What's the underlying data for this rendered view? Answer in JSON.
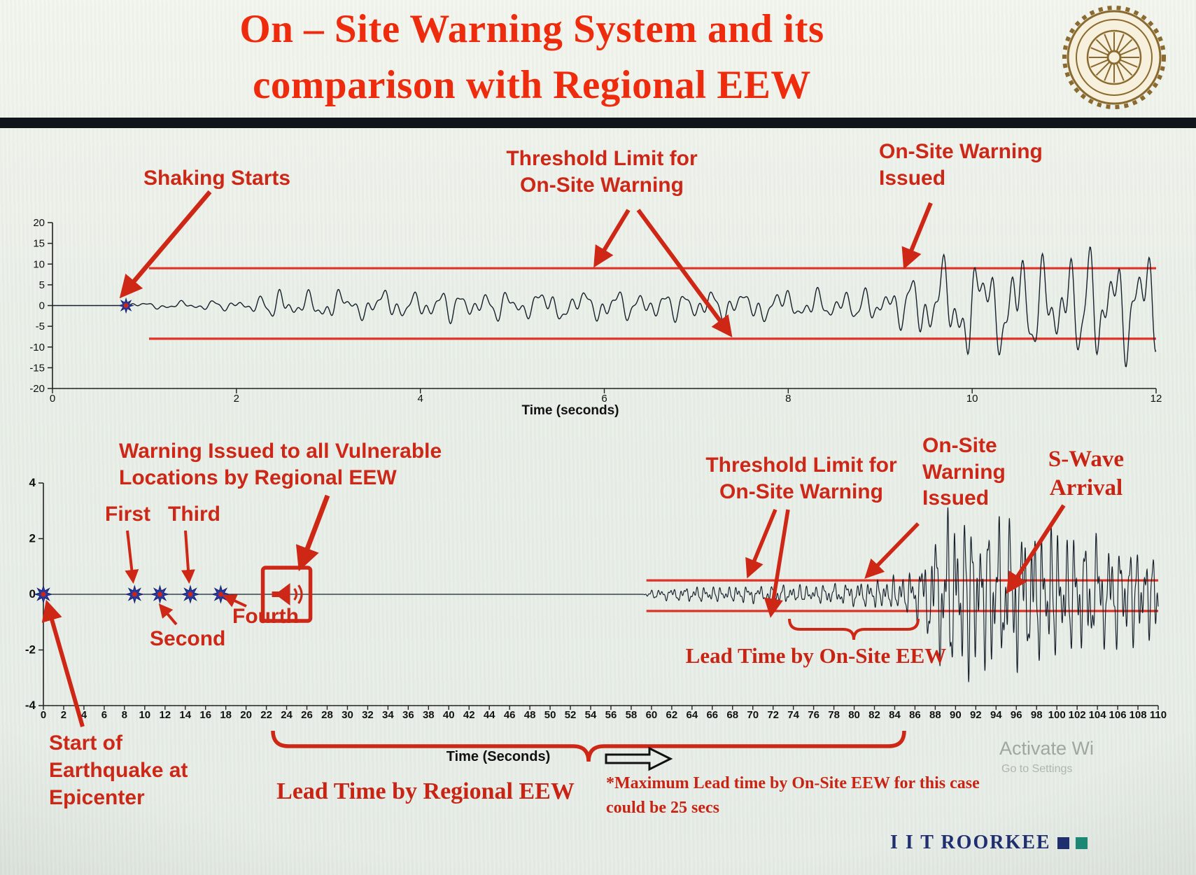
{
  "slide": {
    "title": "On – Site Warning System and its\ncomparison with Regional EEW"
  },
  "colors": {
    "title_red": "#ee2b0d",
    "annotation_red": "#cd2817",
    "threshold_red": "#e03226",
    "arrow_red": "#ce2715",
    "waveform_dark": "#16202c",
    "brand_navy": "#1f2f70",
    "brand_teal": "#1d8a78",
    "logo_brown": "#8a6a2e"
  },
  "chart_data": [
    {
      "id": "top_chart",
      "type": "line",
      "xlabel": "Time (seconds)",
      "xlim": [
        0,
        12
      ],
      "ylim": [
        -20,
        20
      ],
      "xticks": [
        0,
        2,
        4,
        6,
        8,
        10,
        12
      ],
      "yticks": [
        20,
        15,
        10,
        5,
        0,
        -5,
        -10,
        -15,
        -20
      ],
      "grid": false,
      "legend": "none",
      "thresholds": {
        "upper": 9,
        "lower": -8,
        "x_start": 1.05
      },
      "events": {
        "shaking_starts_t": 0.8,
        "onsite_warning_issued_t": 9.3
      },
      "annotations": {
        "shaking_starts": "Shaking Starts",
        "threshold_limit": "Threshold Limit for\nOn-Site Warning",
        "warning_issued": "On-Site Warning\nIssued"
      },
      "envelope": [
        [
          0,
          0
        ],
        [
          0.78,
          0
        ],
        [
          0.85,
          0.7
        ],
        [
          1.1,
          0.9
        ],
        [
          1.4,
          1.1
        ],
        [
          1.8,
          1.3
        ],
        [
          2.1,
          1.8
        ],
        [
          2.35,
          2.6
        ],
        [
          2.5,
          4.6
        ],
        [
          2.7,
          3.1
        ],
        [
          3.0,
          4.3
        ],
        [
          3.3,
          3.0
        ],
        [
          3.6,
          4.1
        ],
        [
          3.9,
          3.1
        ],
        [
          4.2,
          4.4
        ],
        [
          4.5,
          3.2
        ],
        [
          4.8,
          4.0
        ],
        [
          5.1,
          3.1
        ],
        [
          5.4,
          4.3
        ],
        [
          5.7,
          3.3
        ],
        [
          6.0,
          4.6
        ],
        [
          6.3,
          3.4
        ],
        [
          6.6,
          4.2
        ],
        [
          6.9,
          3.2
        ],
        [
          7.2,
          4.4
        ],
        [
          7.5,
          3.3
        ],
        [
          7.8,
          4.5
        ],
        [
          8.1,
          3.4
        ],
        [
          8.4,
          4.2
        ],
        [
          8.7,
          3.6
        ],
        [
          9.0,
          4.9
        ],
        [
          9.25,
          6.2
        ],
        [
          9.45,
          9.0
        ],
        [
          9.7,
          11.5
        ],
        [
          9.95,
          13.5
        ],
        [
          10.2,
          11.0
        ],
        [
          10.45,
          14.5
        ],
        [
          10.7,
          12.0
        ],
        [
          10.95,
          15.5
        ],
        [
          11.2,
          13.0
        ],
        [
          11.45,
          16.0
        ],
        [
          11.7,
          13.5
        ],
        [
          11.95,
          14.5
        ],
        [
          12,
          13.0
        ]
      ]
    },
    {
      "id": "bottom_chart",
      "type": "line",
      "xlabel": "Time (Seconds)",
      "xlim": [
        0,
        110
      ],
      "ylim": [
        -4,
        4
      ],
      "xticks": {
        "min": 0,
        "max": 110,
        "step": 2
      },
      "yticks": [
        4,
        2,
        0,
        -2,
        -4
      ],
      "grid": false,
      "legend": "none",
      "thresholds": {
        "upper": 0.5,
        "lower": -0.6,
        "x_start": 59.5
      },
      "p_wave_detections": [
        {
          "label": "First",
          "t": 9
        },
        {
          "label": "Second",
          "t": 11.5
        },
        {
          "label": "Third",
          "t": 14.5
        },
        {
          "label": "Fourth",
          "t": 17.5
        }
      ],
      "events": {
        "earthquake_start_t": 0,
        "regional_warning_t": 24,
        "onsite_warning_issued_t": 81,
        "s_wave_arrival_t": 95
      },
      "annotations": {
        "regional_warning": "Warning Issued to all Vulnerable\nLocations by Regional EEW",
        "threshold_limit": "Threshold Limit for\nOn-Site Warning",
        "warning_issued": "On-Site\nWarning\nIssued",
        "s_wave": "S-Wave\nArrival",
        "first": "First",
        "second": "Second",
        "third": "Third",
        "fourth": "Fourth",
        "epicenter": "Start of\nEarthquake at\nEpicenter",
        "lead_time_onsite": "Lead Time by On-Site EEW",
        "lead_time_regional": "Lead Time by Regional EEW",
        "max_lead_note": "*Maximum Lead time by On-Site EEW for this case\ncould be 25 secs"
      },
      "envelope": [
        [
          0,
          0
        ],
        [
          59.2,
          0
        ],
        [
          59.6,
          0.14
        ],
        [
          61,
          0.2
        ],
        [
          63,
          0.26
        ],
        [
          65,
          0.3
        ],
        [
          67,
          0.27
        ],
        [
          69,
          0.32
        ],
        [
          71,
          0.29
        ],
        [
          73,
          0.34
        ],
        [
          75,
          0.31
        ],
        [
          77,
          0.36
        ],
        [
          79,
          0.4
        ],
        [
          80.5,
          0.48
        ],
        [
          82,
          0.52
        ],
        [
          83.5,
          0.58
        ],
        [
          85,
          0.75
        ],
        [
          86,
          0.95
        ],
        [
          87,
          1.5
        ],
        [
          88,
          2.3
        ],
        [
          89,
          3.0
        ],
        [
          90,
          3.4
        ],
        [
          91,
          2.8
        ],
        [
          92,
          3.2
        ],
        [
          93,
          2.7
        ],
        [
          94,
          3.0
        ],
        [
          95,
          2.6
        ],
        [
          96,
          2.9
        ],
        [
          97,
          2.4
        ],
        [
          98,
          2.7
        ],
        [
          99,
          2.3
        ],
        [
          100,
          2.6
        ],
        [
          101,
          2.1
        ],
        [
          102,
          2.4
        ],
        [
          103,
          2.0
        ],
        [
          104,
          2.2
        ],
        [
          105,
          1.8
        ],
        [
          106,
          2.0
        ],
        [
          107,
          1.7
        ],
        [
          108,
          1.9
        ],
        [
          109,
          1.6
        ],
        [
          110,
          1.5
        ]
      ]
    }
  ],
  "footer": {
    "brand": "I I T ROORKEE",
    "watermark_line1": "Activate Wi",
    "watermark_line2": "Go to Settings"
  }
}
